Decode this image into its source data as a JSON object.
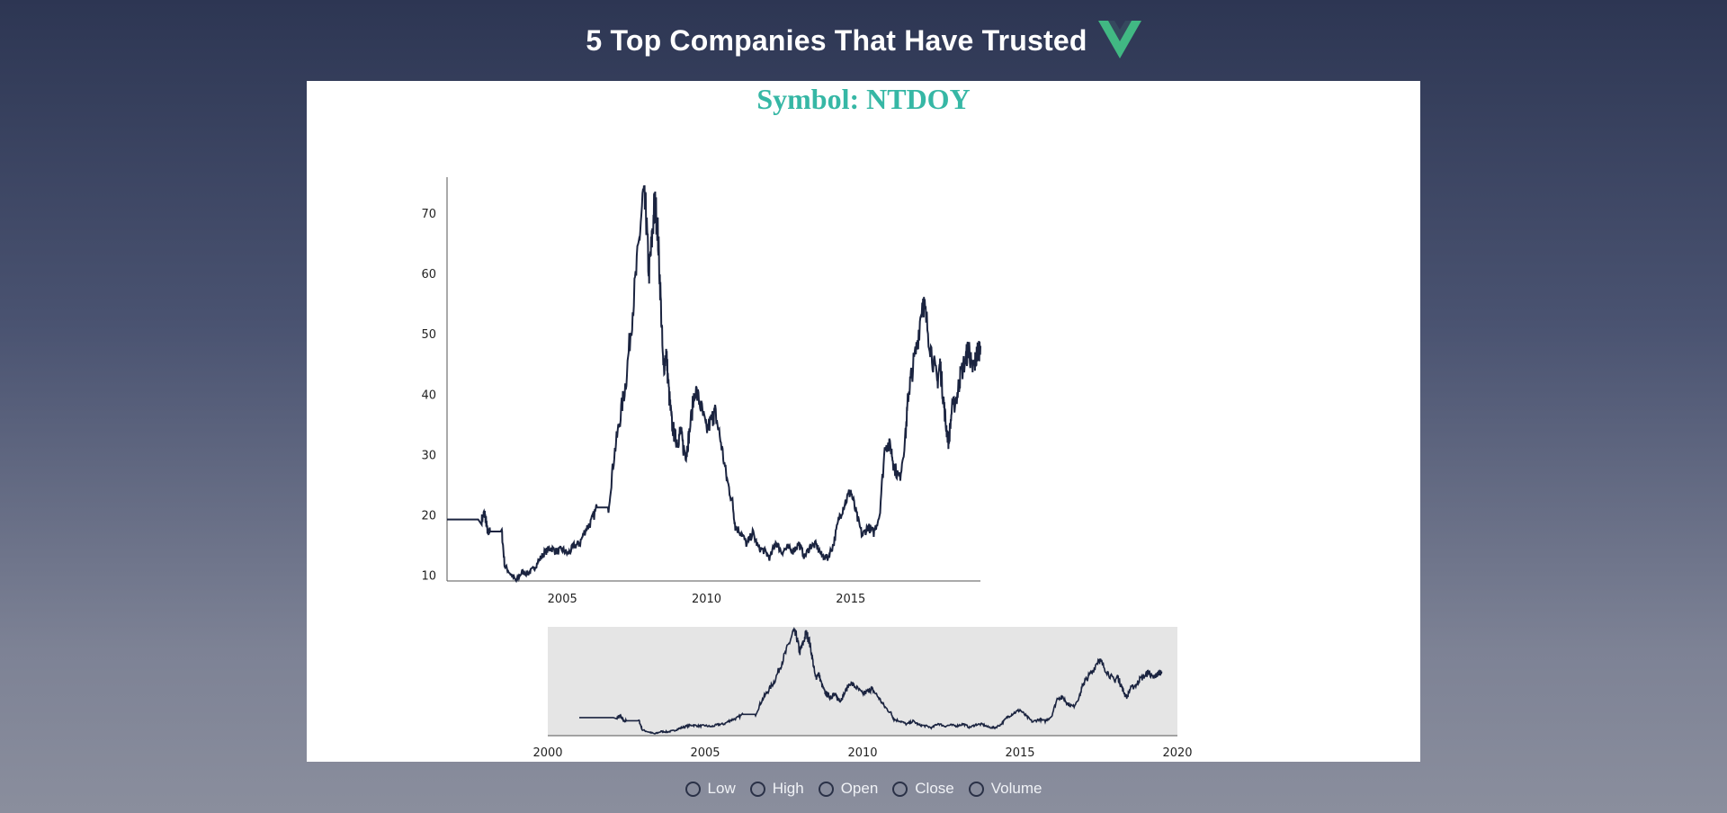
{
  "header": {
    "title": "5 Top Companies That Have Trusted",
    "logo_icon": "vue-logo-icon"
  },
  "panel": {
    "symbol_title": "Symbol: NTDOY",
    "accent_color": "#36b7a5"
  },
  "controls": {
    "options": [
      {
        "label": "Low"
      },
      {
        "label": "High"
      },
      {
        "label": "Open"
      },
      {
        "label": "Close"
      },
      {
        "label": "Volume"
      }
    ]
  },
  "chart_data": [
    {
      "type": "line",
      "line_color": "#1b2440",
      "xlim": [
        2001.0,
        2019.5
      ],
      "ylim": [
        9,
        76
      ],
      "y_ticks": [
        "10",
        "20",
        "30",
        "40",
        "50",
        "60",
        "70"
      ],
      "x_ticks": [
        "2005",
        "2010",
        "2015"
      ],
      "x": [
        2001.0,
        2002.2,
        2002.3,
        2002.35,
        2002.4,
        2002.5,
        2002.9,
        2003.0,
        2003.2,
        2003.4,
        2003.6,
        2003.8,
        2004.0,
        2004.2,
        2004.4,
        2004.6,
        2004.8,
        2005.0,
        2005.2,
        2005.4,
        2005.6,
        2005.8,
        2006.0,
        2006.2,
        2006.4,
        2006.6,
        2006.8,
        2007.0,
        2007.2,
        2007.4,
        2007.6,
        2007.8,
        2007.9,
        2008.0,
        2008.1,
        2008.2,
        2008.3,
        2008.4,
        2008.5,
        2008.6,
        2008.7,
        2008.8,
        2008.9,
        2009.0,
        2009.1,
        2009.2,
        2009.3,
        2009.4,
        2009.6,
        2009.8,
        2010.0,
        2010.2,
        2010.3,
        2010.5,
        2010.7,
        2010.9,
        2011.0,
        2011.2,
        2011.4,
        2011.6,
        2011.8,
        2012.0,
        2012.2,
        2012.4,
        2012.6,
        2012.8,
        2013.0,
        2013.2,
        2013.4,
        2013.6,
        2013.8,
        2014.0,
        2014.2,
        2014.4,
        2014.6,
        2014.8,
        2015.0,
        2015.2,
        2015.4,
        2015.6,
        2015.8,
        2016.0,
        2016.2,
        2016.4,
        2016.5,
        2016.7,
        2016.9,
        2017.0,
        2017.1,
        2017.3,
        2017.5,
        2017.6,
        2017.8,
        2018.0,
        2018.1,
        2018.2,
        2018.3,
        2018.4,
        2018.5,
        2018.7,
        2018.8,
        2019.0,
        2019.1,
        2019.2,
        2019.3,
        2019.4,
        2019.5
      ],
      "values": [
        19.2,
        19.2,
        20.3,
        19.0,
        17.2,
        17.2,
        17.2,
        11.5,
        10.2,
        9.0,
        10.5,
        10.2,
        11.0,
        12.5,
        13.8,
        14.5,
        13.9,
        14.2,
        13.5,
        14.8,
        15.2,
        17.5,
        18.8,
        21.2,
        21.2,
        21.2,
        30.0,
        36.0,
        42.0,
        52.0,
        62.0,
        73.0,
        70.0,
        60.0,
        65.0,
        72.0,
        68.0,
        57.0,
        44.0,
        47.0,
        40.0,
        35.0,
        33.0,
        32.0,
        34.0,
        31.0,
        30.0,
        33.5,
        41.0,
        38.0,
        34.0,
        36.0,
        37.0,
        32.0,
        26.0,
        22.0,
        18.0,
        17.0,
        15.0,
        17.0,
        14.5,
        14.0,
        12.8,
        15.5,
        13.8,
        14.5,
        14.0,
        15.2,
        13.0,
        14.8,
        15.0,
        13.2,
        12.8,
        15.0,
        19.5,
        22.0,
        24.0,
        20.0,
        16.5,
        18.0,
        17.0,
        20.0,
        32.0,
        31.0,
        28.0,
        26.0,
        33.0,
        40.0,
        43.0,
        48.0,
        56.0,
        53.0,
        47.0,
        42.0,
        45.0,
        40.0,
        35.0,
        32.0,
        37.0,
        40.0,
        43.0,
        46.0,
        48.0,
        44.0,
        45.0,
        47.0,
        48.0
      ]
    },
    {
      "type": "area",
      "role": "navigator",
      "line_color": "#1b2440",
      "background": "#e5e5e5",
      "xlim": [
        2000,
        2020
      ],
      "x_ticks": [
        "2000",
        "2005",
        "2010",
        "2015",
        "2020"
      ]
    }
  ]
}
